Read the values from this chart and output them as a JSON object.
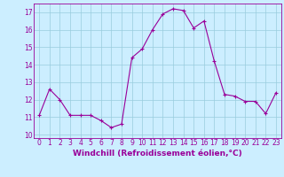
{
  "x": [
    0,
    1,
    2,
    3,
    4,
    5,
    6,
    7,
    8,
    9,
    10,
    11,
    12,
    13,
    14,
    15,
    16,
    17,
    18,
    19,
    20,
    21,
    22,
    23
  ],
  "y": [
    11.1,
    12.6,
    12.0,
    11.1,
    11.1,
    11.1,
    10.8,
    10.4,
    10.6,
    14.4,
    14.9,
    16.0,
    16.9,
    17.2,
    17.1,
    16.1,
    16.5,
    14.2,
    12.3,
    12.2,
    11.9,
    11.9,
    11.2,
    12.4
  ],
  "line_color": "#990099",
  "marker": "+",
  "markersize": 3,
  "linewidth": 0.8,
  "xlabel": "Windchill (Refroidissement éolien,°C)",
  "xlabel_fontsize": 6.5,
  "ylabel_ticks": [
    10,
    11,
    12,
    13,
    14,
    15,
    16,
    17
  ],
  "xtick_labels": [
    "0",
    "1",
    "2",
    "3",
    "4",
    "5",
    "6",
    "7",
    "8",
    "9",
    "10",
    "11",
    "12",
    "13",
    "14",
    "15",
    "16",
    "17",
    "18",
    "19",
    "20",
    "21",
    "22",
    "23"
  ],
  "ylim": [
    9.8,
    17.5
  ],
  "xlim": [
    -0.5,
    23.5
  ],
  "background_color": "#cceeff",
  "grid_color": "#99ccdd",
  "tick_color": "#990099",
  "tick_fontsize": 5.5
}
